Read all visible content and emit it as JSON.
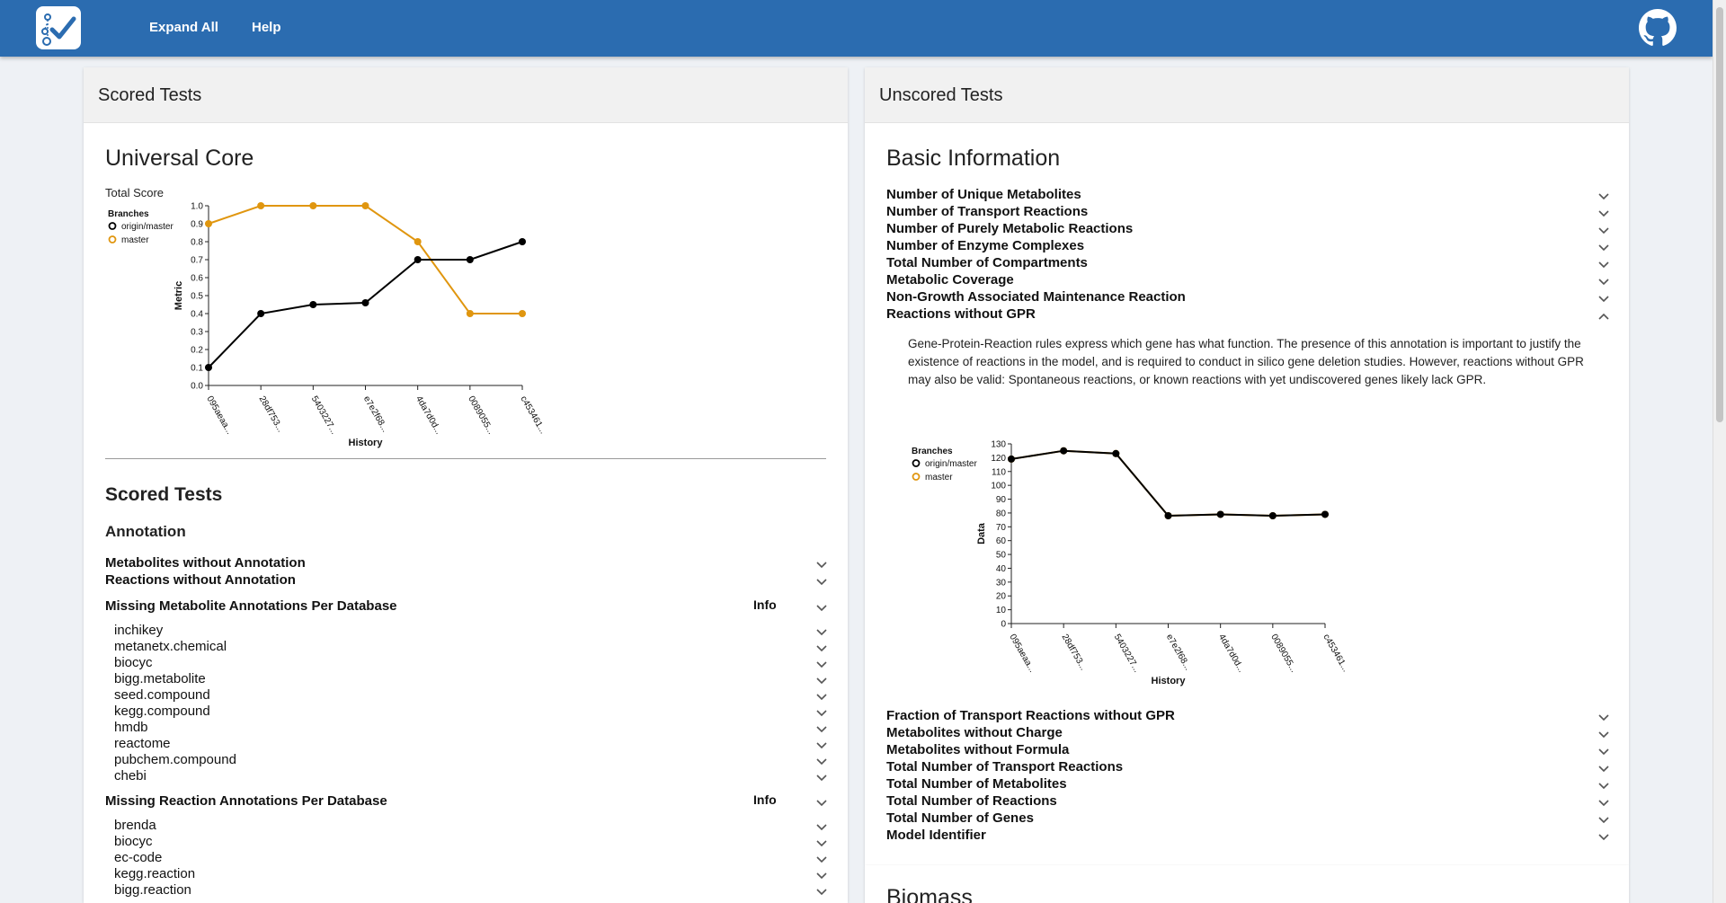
{
  "topbar": {
    "expand_all": "Expand All",
    "help": "Help"
  },
  "panels": {
    "scored_title": "Scored Tests",
    "unscored_title": "Unscored Tests"
  },
  "scored": {
    "section_title": "Universal Core",
    "total_score_label": "Total Score",
    "scored_tests_title": "Scored Tests",
    "annotation_title": "Annotation",
    "tests": [
      "Metabolites without Annotation",
      "Reactions without Annotation"
    ],
    "missing_metabolite": {
      "title": "Missing Metabolite Annotations Per Database",
      "info": "Info",
      "items": [
        "inchikey",
        "metanetx.chemical",
        "biocyc",
        "bigg.metabolite",
        "seed.compound",
        "kegg.compound",
        "hmdb",
        "reactome",
        "pubchem.compound",
        "chebi"
      ]
    },
    "missing_reaction": {
      "title": "Missing Reaction Annotations Per Database",
      "info": "Info",
      "items": [
        "brenda",
        "biocyc",
        "ec-code",
        "kegg.reaction",
        "bigg.reaction"
      ]
    }
  },
  "unscored": {
    "section_title": "Basic Information",
    "tests": [
      "Number of Unique Metabolites",
      "Number of Transport Reactions",
      "Number of Purely Metabolic Reactions",
      "Number of Enzyme Complexes",
      "Total Number of Compartments",
      "Metabolic Coverage",
      "Non-Growth Associated Maintenance Reaction",
      "Reactions without GPR"
    ],
    "gpr_description": "Gene-Protein-Reaction rules express which gene has what function. The presence of this annotation is important to justify the existence of reactions in the model, and is required to conduct in silico gene deletion studies. However, reactions without GPR may also be valid: Spontaneous reactions, or known reactions with yet undiscovered genes likely lack GPR.",
    "tests_after": [
      "Fraction of Transport Reactions without GPR",
      "Metabolites without Charge",
      "Metabolites without Formula",
      "Total Number of Transport Reactions",
      "Total Number of Metabolites",
      "Total Number of Reactions",
      "Total Number of Genes",
      "Model Identifier"
    ],
    "biomass_title": "Biomass"
  },
  "chart_data": [
    {
      "type": "line",
      "title": "",
      "xlabel": "History",
      "ylabel": "Metric",
      "legend_title": "Branches",
      "legend_position": "top-left",
      "categories": [
        "095aeaa...",
        "28df753...",
        "5403227...",
        "e7e2f68...",
        "4da7d0d...",
        "0089055...",
        "c453461..."
      ],
      "ylim": [
        0,
        1
      ],
      "yticks": [
        "0.0",
        "0.1",
        "0.2",
        "0.3",
        "0.4",
        "0.5",
        "0.6",
        "0.7",
        "0.8",
        "0.9",
        "1.0"
      ],
      "series": [
        {
          "name": "origin/master",
          "color": "#000000",
          "values": [
            0.1,
            0.4,
            0.45,
            0.46,
            0.7,
            0.7,
            0.8
          ]
        },
        {
          "name": "master",
          "color": "#e0960f",
          "values": [
            0.9,
            1.0,
            1.0,
            1.0,
            0.8,
            0.4,
            0.4
          ]
        }
      ]
    },
    {
      "type": "line",
      "title": "",
      "xlabel": "History",
      "ylabel": "Data",
      "legend_title": "Branches",
      "legend_position": "top-left",
      "categories": [
        "095aeaa...",
        "28df753...",
        "5403227...",
        "e7e2f68...",
        "4da7d0d...",
        "0089055...",
        "c453461..."
      ],
      "ylim": [
        0,
        130
      ],
      "yticks": [
        "0",
        "10",
        "20",
        "30",
        "40",
        "50",
        "60",
        "70",
        "80",
        "90",
        "100",
        "110",
        "120",
        "130"
      ],
      "series": [
        {
          "name": "origin/master",
          "color": "#000000",
          "values": [
            119,
            125,
            123,
            78,
            79,
            78,
            79
          ]
        },
        {
          "name": "master",
          "color": "#e0960f",
          "values": [
            119,
            125,
            123,
            78,
            79,
            78,
            79
          ]
        }
      ]
    }
  ]
}
